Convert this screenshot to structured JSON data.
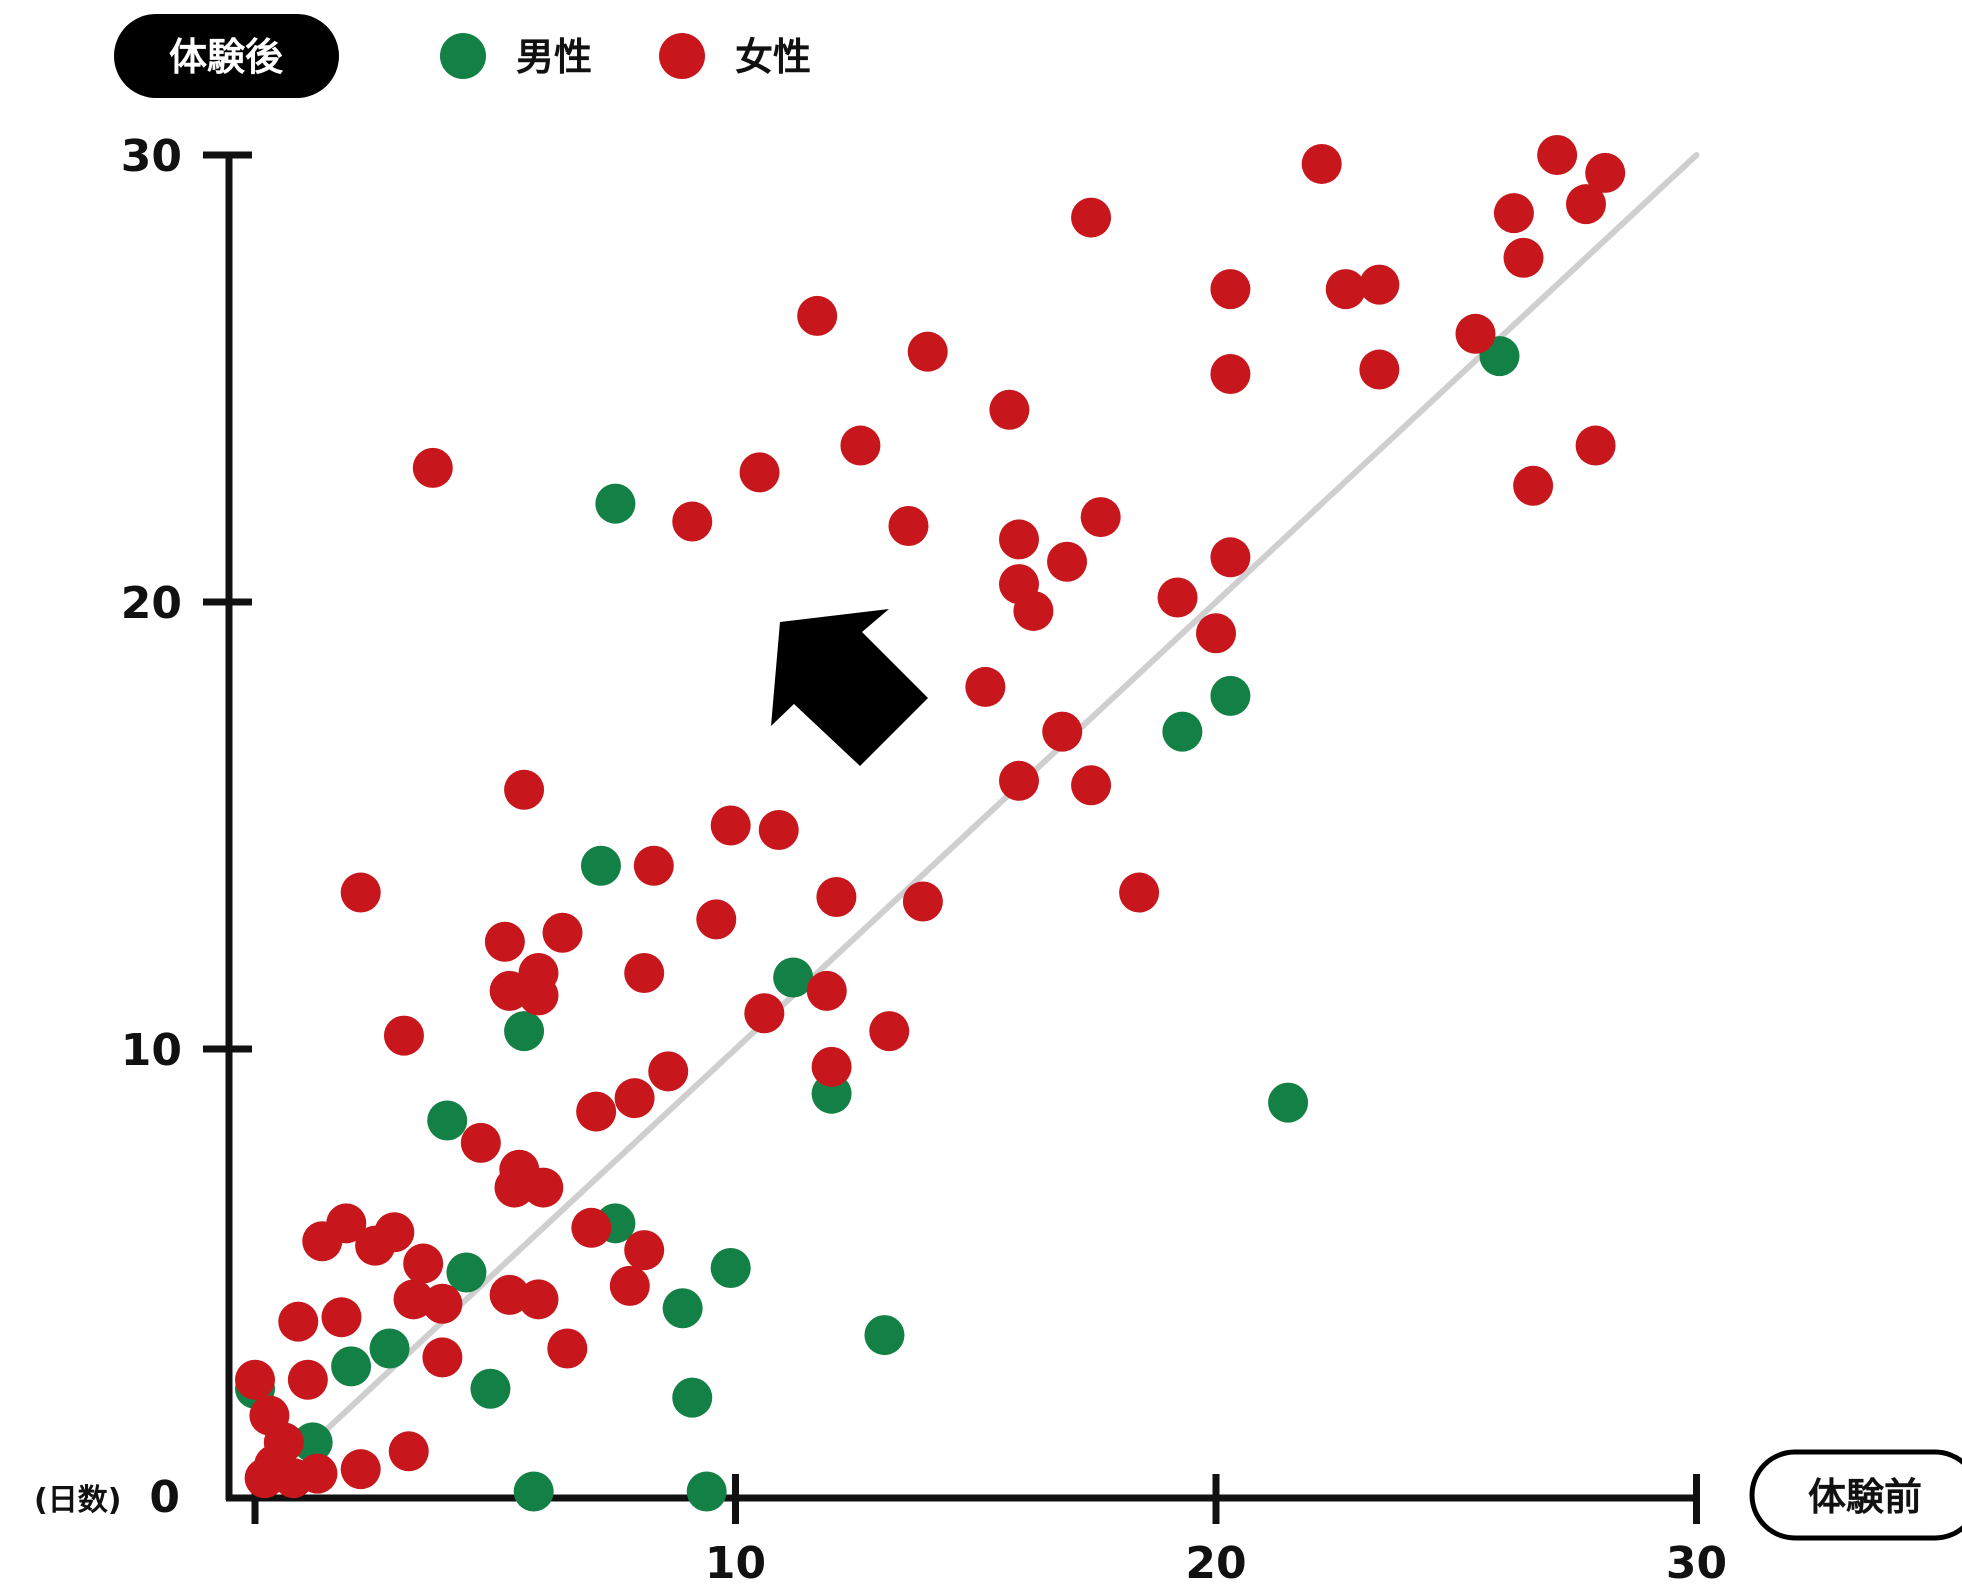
{
  "colors": {
    "male": "#138045",
    "female": "#c8161d",
    "axis": "#111111",
    "reference_line": "#cfcfcf",
    "arrow": "#000000"
  },
  "legend": {
    "title": "体験後",
    "male_label": "男性",
    "female_label": "女性"
  },
  "axes": {
    "x_title": "体験前",
    "y_unit": "(日数)"
  },
  "chart_data": {
    "type": "scatter",
    "title": "",
    "xlabel": "体験前",
    "ylabel": "体験後",
    "xlim": [
      0,
      30
    ],
    "ylim": [
      0,
      30
    ],
    "x_ticks": [
      "10",
      "20",
      "30"
    ],
    "y_ticks": [
      "0",
      "10",
      "20",
      "30"
    ],
    "grid": false,
    "legend_position": "top-left",
    "reference_line": {
      "from": [
        1,
        1
      ],
      "to": [
        30,
        30
      ]
    },
    "annotation": "arrow pointing up-left (increase after experience)",
    "series": [
      {
        "name": "男性",
        "color": "#138045",
        "points": [
          [
            7.5,
            22.2
          ],
          [
            19.3,
            17.1
          ],
          [
            20.3,
            17.9
          ],
          [
            25.9,
            25.5
          ],
          [
            7.2,
            14.1
          ],
          [
            11.2,
            11.6
          ],
          [
            5.6,
            10.4
          ],
          [
            12.0,
            9.0
          ],
          [
            21.5,
            8.8
          ],
          [
            4.0,
            8.4
          ],
          [
            7.5,
            6.1
          ],
          [
            4.4,
            5.0
          ],
          [
            9.9,
            5.1
          ],
          [
            8.9,
            4.2
          ],
          [
            13.1,
            3.6
          ],
          [
            2.8,
            3.3
          ],
          [
            2.0,
            2.9
          ],
          [
            4.9,
            2.4
          ],
          [
            9.1,
            2.2
          ],
          [
            0.0,
            2.4
          ],
          [
            1.2,
            1.2
          ],
          [
            5.8,
            0.1
          ],
          [
            9.4,
            0.1
          ]
        ]
      },
      {
        "name": "女性",
        "color": "#c8161d",
        "points": [
          [
            22.2,
            29.8
          ],
          [
            27.1,
            30.0
          ],
          [
            28.1,
            29.6
          ],
          [
            27.7,
            28.9
          ],
          [
            17.4,
            28.6
          ],
          [
            26.2,
            28.7
          ],
          [
            26.4,
            27.7
          ],
          [
            20.3,
            27.0
          ],
          [
            22.7,
            27.0
          ],
          [
            23.4,
            27.1
          ],
          [
            11.7,
            26.4
          ],
          [
            25.4,
            26.0
          ],
          [
            14.0,
            25.6
          ],
          [
            20.3,
            25.1
          ],
          [
            23.4,
            25.2
          ],
          [
            15.7,
            24.3
          ],
          [
            12.6,
            23.5
          ],
          [
            27.9,
            23.5
          ],
          [
            3.7,
            23.0
          ],
          [
            10.5,
            22.9
          ],
          [
            26.6,
            22.6
          ],
          [
            9.1,
            21.8
          ],
          [
            13.6,
            21.7
          ],
          [
            17.6,
            21.9
          ],
          [
            15.9,
            21.4
          ],
          [
            16.9,
            20.9
          ],
          [
            20.3,
            21.0
          ],
          [
            15.9,
            20.4
          ],
          [
            16.2,
            19.8
          ],
          [
            19.2,
            20.1
          ],
          [
            20.0,
            19.3
          ],
          [
            15.2,
            18.1
          ],
          [
            16.8,
            17.1
          ],
          [
            15.9,
            16.0
          ],
          [
            17.4,
            15.9
          ],
          [
            5.6,
            15.8
          ],
          [
            9.9,
            15.0
          ],
          [
            10.9,
            14.9
          ],
          [
            8.3,
            14.1
          ],
          [
            2.2,
            13.5
          ],
          [
            12.1,
            13.4
          ],
          [
            18.4,
            13.5
          ],
          [
            13.9,
            13.3
          ],
          [
            9.6,
            12.9
          ],
          [
            6.4,
            12.6
          ],
          [
            5.2,
            12.4
          ],
          [
            5.9,
            11.7
          ],
          [
            8.1,
            11.7
          ],
          [
            5.3,
            11.3
          ],
          [
            5.9,
            11.2
          ],
          [
            11.9,
            11.3
          ],
          [
            10.6,
            10.8
          ],
          [
            3.1,
            10.3
          ],
          [
            13.2,
            10.4
          ],
          [
            8.6,
            9.5
          ],
          [
            12.0,
            9.6
          ],
          [
            7.9,
            8.9
          ],
          [
            7.1,
            8.6
          ],
          [
            4.7,
            7.9
          ],
          [
            5.5,
            7.3
          ],
          [
            5.4,
            6.9
          ],
          [
            6.0,
            6.9
          ],
          [
            1.9,
            6.1
          ],
          [
            1.4,
            5.7
          ],
          [
            2.5,
            5.6
          ],
          [
            2.9,
            5.9
          ],
          [
            7.0,
            6.0
          ],
          [
            8.1,
            5.5
          ],
          [
            3.5,
            5.2
          ],
          [
            7.8,
            4.7
          ],
          [
            5.3,
            4.5
          ],
          [
            5.9,
            4.4
          ],
          [
            3.3,
            4.4
          ],
          [
            3.9,
            4.3
          ],
          [
            0.9,
            3.9
          ],
          [
            1.8,
            4.0
          ],
          [
            3.9,
            3.1
          ],
          [
            6.5,
            3.3
          ],
          [
            1.1,
            2.6
          ],
          [
            0.0,
            2.6
          ],
          [
            0.3,
            1.8
          ],
          [
            0.6,
            1.2
          ],
          [
            3.2,
            1.0
          ],
          [
            0.4,
            0.7
          ],
          [
            0.2,
            0.4
          ],
          [
            0.8,
            0.4
          ],
          [
            1.3,
            0.5
          ],
          [
            2.2,
            0.6
          ]
        ]
      }
    ]
  }
}
